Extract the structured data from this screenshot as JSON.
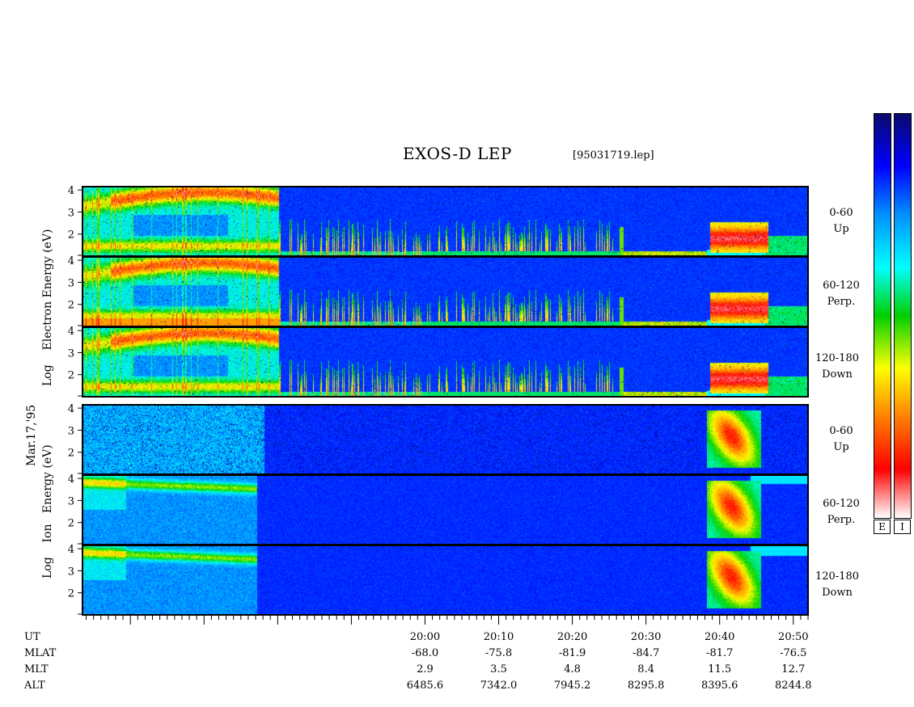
{
  "chart_data": {
    "type": "heatmap",
    "title": "EXOS-D LEP",
    "subtitle": "[95031719.lep]",
    "date_label": "Mar.17,'95",
    "electron_group": {
      "ylabel_parts": [
        "Log",
        "Electron",
        "Energy",
        "(eV)"
      ]
    },
    "ion_group": {
      "ylabel_parts": [
        "Log",
        "Ion",
        "Energy",
        "(eV)"
      ]
    },
    "panels": [
      {
        "species": "Electron",
        "channel_range": "0-60",
        "channel_dir": "Up"
      },
      {
        "species": "Electron",
        "channel_range": "60-120",
        "channel_dir": "Perp."
      },
      {
        "species": "Electron",
        "channel_range": "120-180",
        "channel_dir": "Down"
      },
      {
        "species": "Ion",
        "channel_range": "0-60",
        "channel_dir": "Up"
      },
      {
        "species": "Ion",
        "channel_range": "60-120",
        "channel_dir": "Perp."
      },
      {
        "species": "Ion",
        "channel_range": "120-180",
        "channel_dir": "Down"
      }
    ],
    "y_ticks": [
      "4",
      "3",
      "2"
    ],
    "y_range": [
      1,
      4.15
    ],
    "x_range_minutes": [
      1153.5,
      1252
    ],
    "x_ticks": [
      "20:00",
      "20:10",
      "20:20",
      "20:30",
      "20:40",
      "20:50"
    ],
    "colorbar_labels": [
      "E",
      "I"
    ],
    "colorbar_colors": [
      "#0a0a6e",
      "#0000ff",
      "#0090ff",
      "#00ffff",
      "#00d000",
      "#ffff00",
      "#ff8000",
      "#ff0000",
      "#ffffff"
    ],
    "ephemeris": {
      "row_labels": [
        "UT",
        "MLAT",
        "MLT",
        "ALT"
      ],
      "UT": [
        "20:00",
        "20:10",
        "20:20",
        "20:30",
        "20:40",
        "20:50"
      ],
      "MLAT": [
        "-68.0",
        "-75.8",
        "-81.9",
        "-84.7",
        "-81.7",
        "-76.5"
      ],
      "MLT": [
        "2.9",
        "3.5",
        "4.8",
        "8.4",
        "11.5",
        "12.7"
      ],
      "ALT": [
        "6485.6",
        "7342.0",
        "7945.2",
        "8295.8",
        "8395.6",
        "8244.8"
      ]
    }
  }
}
